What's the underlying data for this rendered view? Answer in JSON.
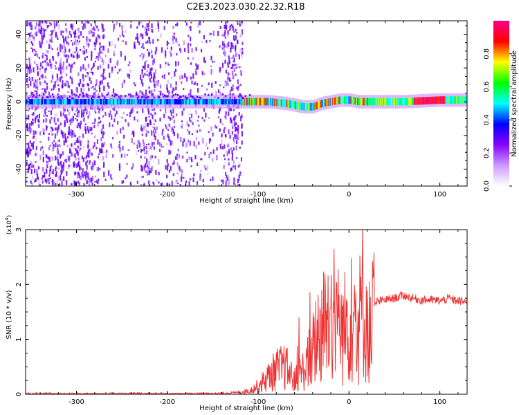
{
  "title": "C2E3.2023.030.22.32.R18",
  "chart_data": [
    {
      "type": "heatmap",
      "xlabel": "Height of straight line (km)",
      "ylabel": "Frequency (Hz)",
      "xlim": [
        -356,
        130
      ],
      "ylim": [
        -50,
        48
      ],
      "xticks": [
        "-300",
        "-200",
        "-100",
        "0",
        "100"
      ],
      "yticks": [
        "-40",
        "-20",
        "0",
        "20",
        "40"
      ],
      "ridge_x": [
        -356,
        -300,
        -250,
        -200,
        -160,
        -120,
        -90,
        -70,
        -50,
        -40,
        -30,
        -20,
        -10,
        0,
        10,
        20,
        60,
        100,
        130
      ],
      "ridge_y": [
        0,
        0,
        0,
        0,
        0,
        0,
        0,
        -1,
        -3,
        -3,
        -1,
        0,
        1,
        1,
        0,
        0,
        0,
        1,
        1
      ],
      "colorbar": {
        "label": "Normalized spectral amplitude",
        "range": [
          0,
          1
        ],
        "ticks": [
          "0.0",
          "0.2",
          "0.4",
          "0.6",
          "0.8"
        ],
        "colors": [
          "#ffffff",
          "#cc99ff",
          "#8800ff",
          "#0000ff",
          "#00ffff",
          "#00ff00",
          "#ffff00",
          "#ff0000",
          "#ff0088"
        ]
      }
    },
    {
      "type": "line",
      "xlabel": "Height of straight line (km)",
      "ylabel": "SNR (10 * v/v)",
      "scale_label": "(x10",
      "scale_exp": "4",
      "scale_close": ")",
      "xlim": [
        -356,
        130
      ],
      "ylim": [
        0,
        3
      ],
      "xticks": [
        "-300",
        "-200",
        "-100",
        "0",
        "100"
      ],
      "yticks": [
        "0",
        "1",
        "2",
        "3"
      ],
      "line_color": "#ee3333",
      "series": [
        {
          "x": [
            -356,
            -300,
            -250,
            -200,
            -150,
            -125,
            -110,
            -100,
            -90,
            -80,
            -70,
            -60,
            -50,
            -45,
            -40,
            -35,
            -30,
            -25,
            -20,
            -15,
            -10,
            -5,
            0,
            5,
            10,
            15,
            20,
            25,
            28,
            30,
            40,
            50,
            60,
            70,
            80,
            90,
            100,
            105,
            110,
            115,
            120,
            130
          ],
          "y": [
            0.0,
            0.0,
            0.0,
            0.0,
            0.01,
            0.03,
            0.06,
            0.15,
            0.3,
            0.45,
            0.5,
            0.25,
            0.45,
            0.6,
            0.8,
            1.1,
            1.2,
            1.3,
            1.5,
            1.7,
            1.1,
            1.2,
            1.4,
            1.3,
            1.2,
            1.7,
            1.3,
            1.0,
            1.6,
            1.68,
            1.72,
            1.75,
            1.8,
            1.75,
            1.72,
            1.72,
            1.7,
            1.72,
            1.75,
            1.72,
            1.7,
            1.68
          ]
        }
      ]
    }
  ]
}
